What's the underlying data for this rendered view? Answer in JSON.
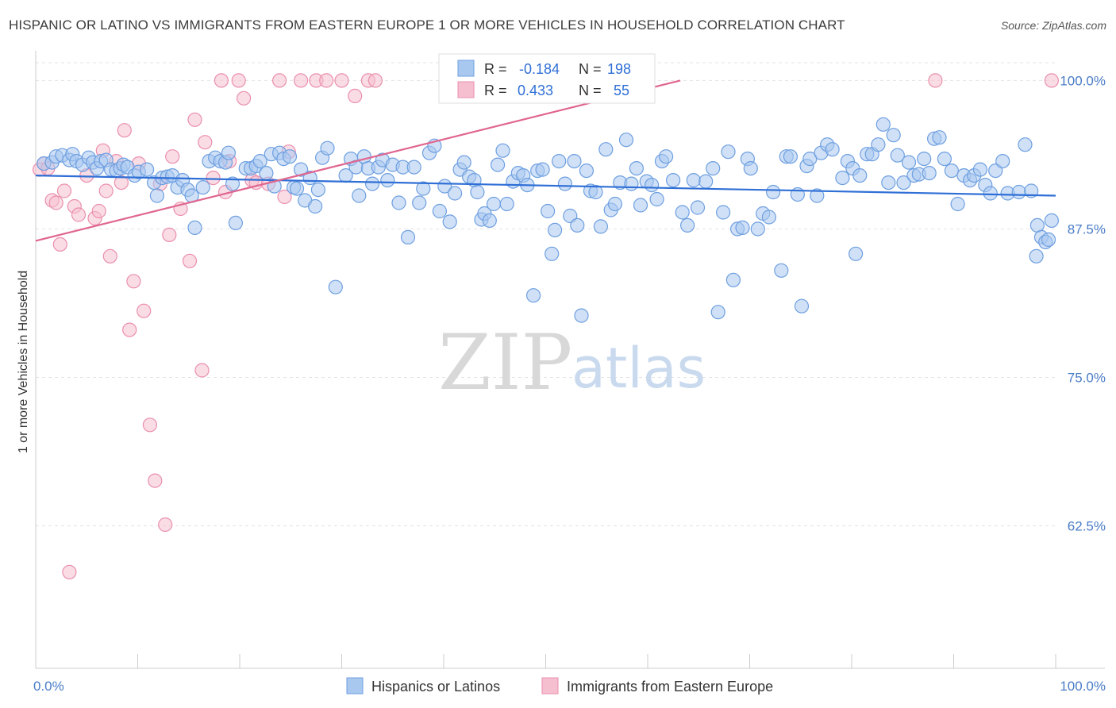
{
  "header": {
    "title": "HISPANIC OR LATINO VS IMMIGRANTS FROM EASTERN EUROPE 1 OR MORE VEHICLES IN HOUSEHOLD CORRELATION CHART",
    "source": "Source: ZipAtlas.com"
  },
  "watermark": {
    "zip": "ZIP",
    "atlas": "atlas"
  },
  "colors": {
    "blue_fill": "#a9c8f0",
    "blue_stroke": "#6e9fe0",
    "blue_line": "#2f6fd6",
    "pink_fill": "#f5bfd0",
    "pink_stroke": "#ea8fae",
    "pink_line": "#e0668f",
    "tick": "#4a7cc7"
  },
  "stats_box": {
    "rows": [
      {
        "r_label": "R =",
        "r_value": "-0.184",
        "n_label": "N =",
        "n_value": "198"
      },
      {
        "r_label": "R =",
        "r_value": "0.433",
        "n_label": "N =",
        "n_value": "55"
      }
    ]
  },
  "legend": {
    "items": [
      {
        "label": "Hispanics or Latinos",
        "color": "#a9c8f0"
      },
      {
        "label": "Immigrants from Eastern Europe",
        "color": "#f5bfd0"
      }
    ]
  },
  "chart_data": {
    "type": "scatter",
    "title": "HISPANIC OR LATINO VS IMMIGRANTS FROM EASTERN EUROPE 1 OR MORE VEHICLES IN HOUSEHOLD CORRELATION CHART",
    "xlabel": "",
    "ylabel": "1 or more Vehicles in Household",
    "x_tick_labels": [
      "0.0%",
      "100.0%"
    ],
    "y_tick_labels": [
      "100.0%",
      "87.5%",
      "75.0%",
      "62.5%"
    ],
    "y_ticks": [
      100.0,
      87.5,
      75.0,
      62.5
    ],
    "xlim": [
      0,
      100
    ],
    "ylim": [
      50.5,
      102.5
    ],
    "grid": true,
    "legend_position": "bottom",
    "series": [
      {
        "name": "Hispanics or Latinos",
        "trend": {
          "x": [
            0,
            100
          ],
          "y": [
            92.0,
            90.3
          ]
        },
        "points": [
          [
            0.8,
            93.0
          ],
          [
            1.6,
            93.1
          ],
          [
            2.0,
            93.6
          ],
          [
            2.6,
            93.7
          ],
          [
            3.3,
            93.3
          ],
          [
            3.6,
            93.8
          ],
          [
            4.0,
            93.2
          ],
          [
            4.6,
            92.9
          ],
          [
            5.2,
            93.5
          ],
          [
            5.6,
            93.1
          ],
          [
            6.0,
            92.6
          ],
          [
            6.4,
            93.2
          ],
          [
            6.9,
            93.3
          ],
          [
            7.4,
            92.5
          ],
          [
            7.9,
            92.4
          ],
          [
            8.3,
            92.6
          ],
          [
            8.6,
            92.9
          ],
          [
            9.0,
            92.7
          ],
          [
            9.7,
            92.0
          ],
          [
            10.1,
            92.3
          ],
          [
            10.9,
            92.5
          ],
          [
            11.6,
            91.4
          ],
          [
            11.9,
            90.3
          ],
          [
            12.4,
            91.8
          ],
          [
            12.9,
            91.9
          ],
          [
            13.4,
            92.0
          ],
          [
            13.9,
            91.0
          ],
          [
            14.4,
            91.6
          ],
          [
            14.9,
            90.8
          ],
          [
            15.3,
            90.3
          ],
          [
            15.6,
            87.6
          ],
          [
            16.4,
            91.0
          ],
          [
            17.0,
            93.2
          ],
          [
            17.6,
            93.5
          ],
          [
            18.1,
            93.2
          ],
          [
            18.6,
            93.1
          ],
          [
            18.9,
            93.9
          ],
          [
            19.3,
            91.3
          ],
          [
            19.6,
            88.0
          ],
          [
            20.6,
            92.6
          ],
          [
            21.1,
            92.6
          ],
          [
            21.6,
            92.8
          ],
          [
            22.0,
            93.2
          ],
          [
            22.6,
            92.2
          ],
          [
            23.1,
            93.8
          ],
          [
            23.4,
            91.1
          ],
          [
            23.9,
            93.9
          ],
          [
            24.3,
            93.4
          ],
          [
            24.9,
            93.6
          ],
          [
            25.3,
            91.0
          ],
          [
            25.6,
            90.9
          ],
          [
            26.0,
            92.5
          ],
          [
            26.4,
            89.9
          ],
          [
            26.9,
            91.8
          ],
          [
            27.4,
            89.4
          ],
          [
            27.7,
            90.8
          ],
          [
            28.1,
            93.5
          ],
          [
            28.6,
            94.3
          ],
          [
            29.4,
            82.6
          ],
          [
            30.4,
            92.0
          ],
          [
            30.9,
            93.4
          ],
          [
            31.4,
            92.7
          ],
          [
            31.7,
            90.3
          ],
          [
            32.2,
            93.6
          ],
          [
            32.6,
            92.6
          ],
          [
            33.0,
            91.3
          ],
          [
            33.6,
            92.7
          ],
          [
            34.0,
            93.3
          ],
          [
            34.5,
            91.6
          ],
          [
            35.0,
            92.9
          ],
          [
            35.6,
            89.7
          ],
          [
            36.0,
            92.7
          ],
          [
            36.5,
            86.8
          ],
          [
            37.1,
            92.7
          ],
          [
            37.6,
            89.7
          ],
          [
            38.0,
            90.9
          ],
          [
            38.6,
            93.9
          ],
          [
            39.1,
            94.5
          ],
          [
            39.6,
            89.0
          ],
          [
            40.1,
            91.1
          ],
          [
            40.6,
            88.1
          ],
          [
            41.1,
            90.5
          ],
          [
            41.6,
            92.5
          ],
          [
            42.0,
            93.1
          ],
          [
            42.5,
            91.9
          ],
          [
            43.0,
            91.6
          ],
          [
            43.3,
            90.6
          ],
          [
            43.7,
            88.3
          ],
          [
            44.0,
            88.8
          ],
          [
            44.5,
            88.2
          ],
          [
            44.9,
            89.6
          ],
          [
            45.3,
            92.9
          ],
          [
            45.8,
            94.1
          ],
          [
            46.2,
            89.6
          ],
          [
            46.8,
            91.5
          ],
          [
            47.3,
            92.2
          ],
          [
            47.8,
            92.0
          ],
          [
            48.2,
            91.2
          ],
          [
            48.8,
            81.9
          ],
          [
            49.2,
            92.4
          ],
          [
            49.7,
            92.5
          ],
          [
            50.2,
            89.0
          ],
          [
            50.6,
            85.4
          ],
          [
            50.9,
            87.4
          ],
          [
            51.3,
            93.2
          ],
          [
            51.9,
            91.3
          ],
          [
            52.4,
            88.6
          ],
          [
            52.8,
            93.2
          ],
          [
            53.1,
            87.8
          ],
          [
            53.5,
            80.2
          ],
          [
            54.0,
            92.4
          ],
          [
            54.4,
            90.7
          ],
          [
            54.9,
            90.6
          ],
          [
            55.4,
            87.7
          ],
          [
            55.9,
            94.2
          ],
          [
            56.4,
            89.1
          ],
          [
            56.8,
            89.6
          ],
          [
            57.3,
            91.4
          ],
          [
            57.9,
            95.0
          ],
          [
            58.4,
            91.3
          ],
          [
            58.9,
            92.6
          ],
          [
            59.3,
            89.5
          ],
          [
            59.9,
            91.5
          ],
          [
            60.4,
            91.2
          ],
          [
            60.9,
            90.0
          ],
          [
            61.4,
            93.2
          ],
          [
            61.8,
            93.6
          ],
          [
            62.5,
            91.6
          ],
          [
            63.4,
            88.9
          ],
          [
            63.9,
            87.8
          ],
          [
            64.5,
            91.6
          ],
          [
            64.9,
            89.3
          ],
          [
            65.7,
            91.5
          ],
          [
            66.4,
            92.6
          ],
          [
            66.9,
            80.5
          ],
          [
            67.4,
            88.9
          ],
          [
            67.9,
            94.0
          ],
          [
            68.4,
            83.2
          ],
          [
            68.8,
            87.5
          ],
          [
            69.3,
            87.6
          ],
          [
            69.8,
            93.4
          ],
          [
            70.1,
            92.6
          ],
          [
            70.8,
            87.5
          ],
          [
            71.3,
            88.8
          ],
          [
            71.9,
            88.5
          ],
          [
            72.3,
            90.6
          ],
          [
            73.1,
            84.0
          ],
          [
            73.6,
            93.6
          ],
          [
            74.0,
            93.6
          ],
          [
            74.7,
            90.4
          ],
          [
            75.1,
            81.0
          ],
          [
            75.6,
            92.8
          ],
          [
            75.9,
            93.4
          ],
          [
            76.6,
            90.3
          ],
          [
            77.0,
            93.9
          ],
          [
            77.6,
            94.6
          ],
          [
            78.1,
            94.2
          ],
          [
            79.1,
            91.8
          ],
          [
            79.6,
            93.2
          ],
          [
            80.1,
            92.6
          ],
          [
            80.4,
            85.4
          ],
          [
            80.8,
            92.0
          ],
          [
            81.5,
            93.8
          ],
          [
            82.0,
            93.8
          ],
          [
            82.6,
            94.6
          ],
          [
            83.1,
            96.3
          ],
          [
            83.6,
            91.4
          ],
          [
            84.1,
            95.4
          ],
          [
            84.5,
            93.7
          ],
          [
            85.1,
            91.4
          ],
          [
            85.6,
            93.1
          ],
          [
            86.1,
            92.0
          ],
          [
            86.6,
            92.1
          ],
          [
            87.1,
            93.4
          ],
          [
            87.6,
            92.2
          ],
          [
            88.1,
            95.1
          ],
          [
            88.6,
            95.2
          ],
          [
            89.1,
            93.4
          ],
          [
            89.8,
            92.4
          ],
          [
            90.4,
            89.6
          ],
          [
            91.0,
            92.0
          ],
          [
            91.6,
            91.6
          ],
          [
            92.0,
            92.0
          ],
          [
            92.6,
            92.5
          ],
          [
            93.1,
            91.2
          ],
          [
            93.6,
            90.5
          ],
          [
            94.1,
            92.4
          ],
          [
            94.8,
            93.2
          ],
          [
            95.3,
            90.5
          ],
          [
            96.4,
            90.6
          ],
          [
            97.0,
            94.6
          ],
          [
            97.6,
            90.7
          ],
          [
            98.2,
            87.8
          ],
          [
            98.6,
            86.8
          ],
          [
            99.0,
            86.4
          ],
          [
            99.3,
            86.6
          ],
          [
            99.6,
            88.2
          ],
          [
            98.1,
            85.2
          ]
        ]
      },
      {
        "name": "Immigrants from Eastern Europe",
        "trend": {
          "x": [
            0,
            63.2
          ],
          "y": [
            86.5,
            100.0
          ]
        },
        "points": [
          [
            0.4,
            92.5
          ],
          [
            0.8,
            93.0
          ],
          [
            1.2,
            92.6
          ],
          [
            1.6,
            89.9
          ],
          [
            2.0,
            89.7
          ],
          [
            2.4,
            86.2
          ],
          [
            2.8,
            90.7
          ],
          [
            3.3,
            58.6
          ],
          [
            3.8,
            89.4
          ],
          [
            4.2,
            88.7
          ],
          [
            5.0,
            92.0
          ],
          [
            5.8,
            88.4
          ],
          [
            6.2,
            89.0
          ],
          [
            6.6,
            94.1
          ],
          [
            6.9,
            90.7
          ],
          [
            7.3,
            85.2
          ],
          [
            7.9,
            93.2
          ],
          [
            8.4,
            91.4
          ],
          [
            8.7,
            95.8
          ],
          [
            9.2,
            79.0
          ],
          [
            9.6,
            83.1
          ],
          [
            10.1,
            93.0
          ],
          [
            10.6,
            80.6
          ],
          [
            11.2,
            71.0
          ],
          [
            11.7,
            66.3
          ],
          [
            12.2,
            91.3
          ],
          [
            12.7,
            62.6
          ],
          [
            13.1,
            87.0
          ],
          [
            13.4,
            93.6
          ],
          [
            14.2,
            89.2
          ],
          [
            15.1,
            84.8
          ],
          [
            15.6,
            96.7
          ],
          [
            16.3,
            75.6
          ],
          [
            16.6,
            94.8
          ],
          [
            17.4,
            91.8
          ],
          [
            18.2,
            100.0
          ],
          [
            18.6,
            90.6
          ],
          [
            19.0,
            93.2
          ],
          [
            19.9,
            100.0
          ],
          [
            20.4,
            98.5
          ],
          [
            21.2,
            91.6
          ],
          [
            21.6,
            91.4
          ],
          [
            22.8,
            91.3
          ],
          [
            23.9,
            100.0
          ],
          [
            24.8,
            94.0
          ],
          [
            24.4,
            90.2
          ],
          [
            26.0,
            100.0
          ],
          [
            27.5,
            100.0
          ],
          [
            28.5,
            100.0
          ],
          [
            30.0,
            100.0
          ],
          [
            31.3,
            98.7
          ],
          [
            32.6,
            100.0
          ],
          [
            33.3,
            100.0
          ],
          [
            88.2,
            100.0
          ],
          [
            99.6,
            100.0
          ]
        ]
      }
    ]
  }
}
